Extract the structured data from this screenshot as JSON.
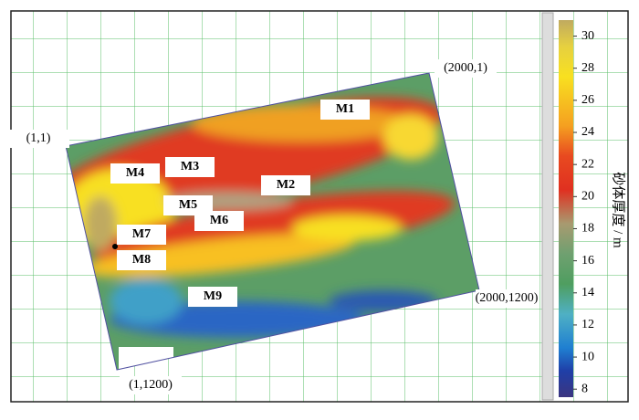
{
  "map": {
    "corners": [
      "(1,1)",
      "(2000,1)",
      "(2000,1200)",
      "(1,1200)"
    ],
    "wells": [
      "M1",
      "M2",
      "M3",
      "M4",
      "M5",
      "M6",
      "M7",
      "M8",
      "M9"
    ]
  },
  "colorbar": {
    "label": "砂体厚度 / m",
    "range": [
      7.5,
      31
    ],
    "ticks": [
      8,
      10,
      12,
      14,
      16,
      18,
      20,
      22,
      24,
      26,
      28,
      30
    ]
  }
}
